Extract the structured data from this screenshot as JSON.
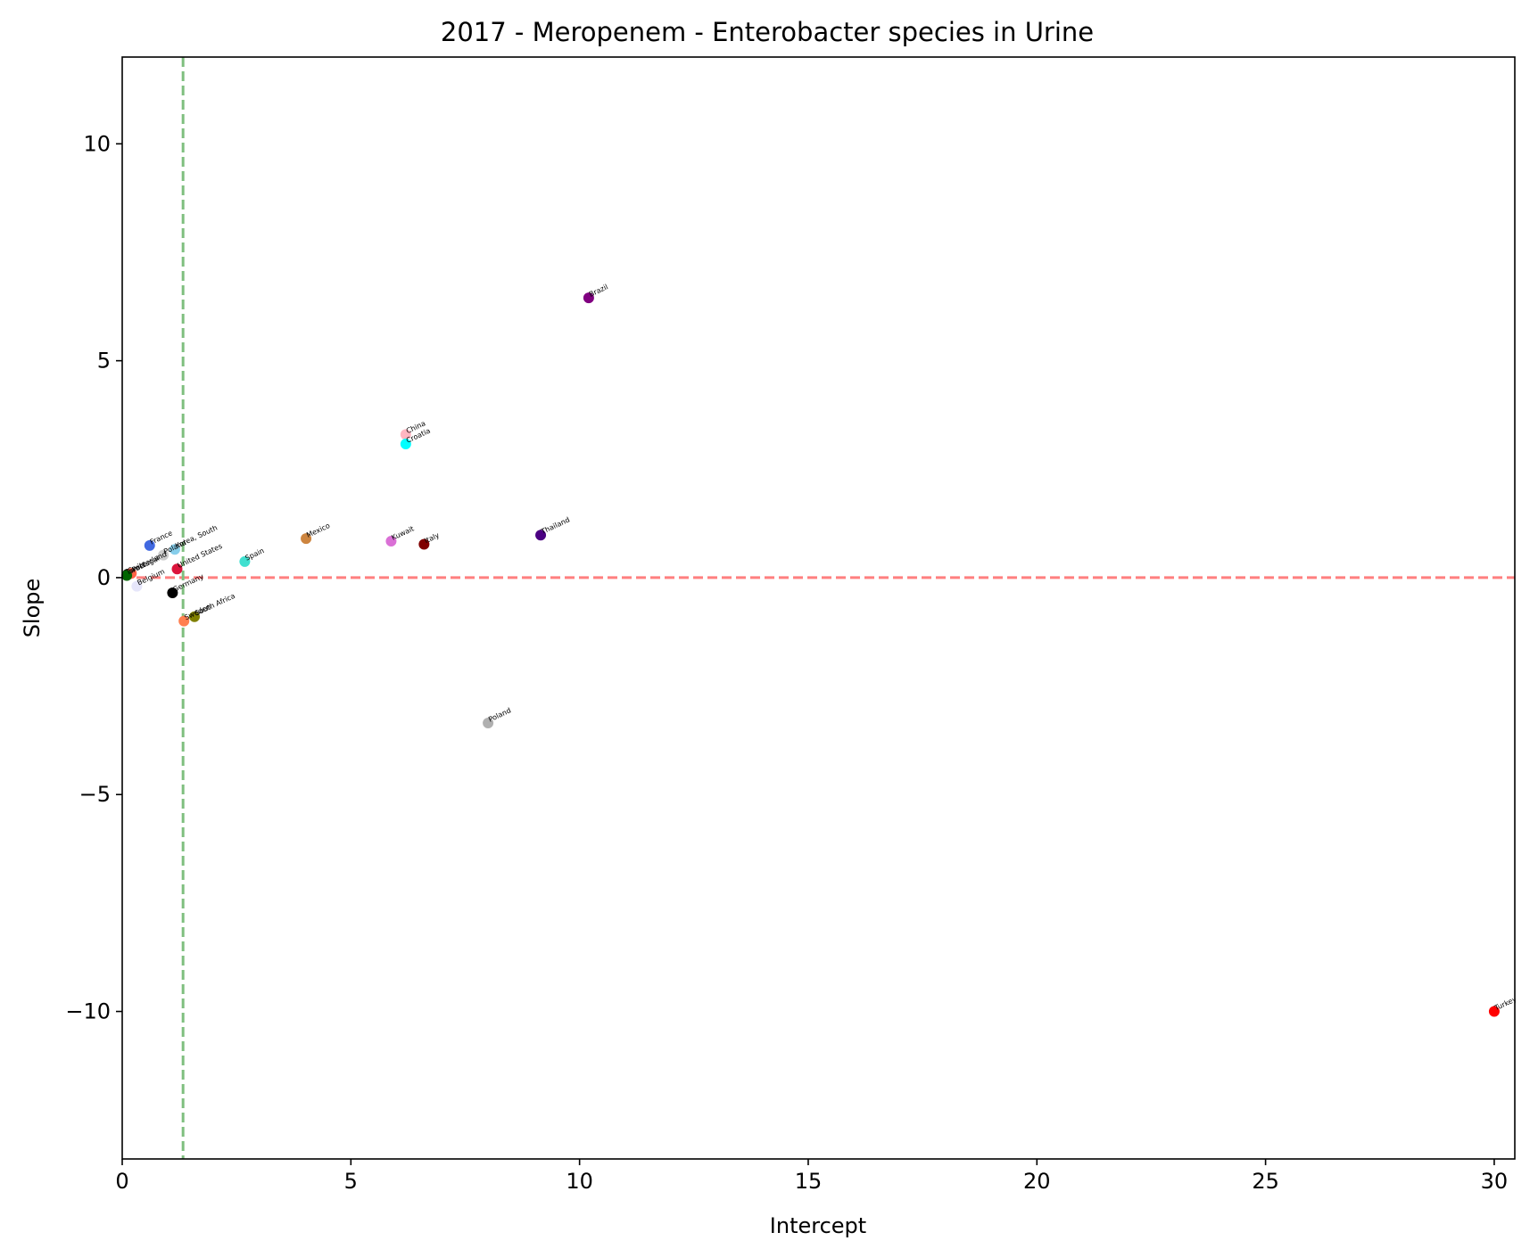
{
  "chart_data": {
    "type": "scatter",
    "title": "2017 - Meropenem - Enterobacter species in Urine",
    "xlabel": "Intercept",
    "ylabel": "Slope",
    "xlim": [
      0,
      30.45
    ],
    "ylim": [
      -13.4,
      12.0
    ],
    "xticks": [
      0,
      5,
      10,
      15,
      20,
      25,
      30
    ],
    "yticks": [
      -10,
      -5,
      0,
      5,
      10
    ],
    "xtick_labels": [
      "0",
      "5",
      "10",
      "15",
      "20",
      "25",
      "30"
    ],
    "ytick_labels": [
      "−10",
      "−5",
      "0",
      "5",
      "10"
    ],
    "grid": false,
    "reference_lines": [
      {
        "orientation": "horizontal",
        "value": 0,
        "color": "#ff7f7f",
        "style": "dashed"
      },
      {
        "orientation": "vertical",
        "value": 1.33,
        "color": "#7fbf7f",
        "style": "dashed"
      }
    ],
    "points": [
      {
        "label": "Brazil",
        "x": 10.2,
        "y": 6.45,
        "color": "#800080"
      },
      {
        "label": "China",
        "x": 6.2,
        "y": 3.3,
        "color": "#ffb6c1"
      },
      {
        "label": "Croatia",
        "x": 6.2,
        "y": 3.08,
        "color": "#00ffff"
      },
      {
        "label": "Thailand",
        "x": 9.15,
        "y": 0.98,
        "color": "#4b0082"
      },
      {
        "label": "Mexico",
        "x": 4.02,
        "y": 0.9,
        "color": "#cd853f"
      },
      {
        "label": "Kuwait",
        "x": 5.88,
        "y": 0.84,
        "color": "#da70d6"
      },
      {
        "label": "Italy",
        "x": 6.6,
        "y": 0.77,
        "color": "#800000"
      },
      {
        "label": "France",
        "x": 0.6,
        "y": 0.74,
        "color": "#4169e1"
      },
      {
        "label": "Korea, South",
        "x": 1.15,
        "y": 0.65,
        "color": "#87ceeb"
      },
      {
        "label": "Poland",
        "x": 0.9,
        "y": 0.52,
        "color": "#cccccc"
      },
      {
        "label": "United States",
        "x": 1.2,
        "y": 0.2,
        "color": "#dc143c"
      },
      {
        "label": "Spain",
        "x": 2.68,
        "y": 0.37,
        "color": "#40e0d0"
      },
      {
        "label": "Switzerland",
        "x": 0.12,
        "y": 0.08,
        "color": "#000000"
      },
      {
        "label": "Portugal",
        "x": 0.2,
        "y": 0.1,
        "color": "#ff6347"
      },
      {
        "label": "Israel",
        "x": 0.1,
        "y": 0.05,
        "color": "#006400"
      },
      {
        "label": "Belgium",
        "x": 0.32,
        "y": -0.2,
        "color": "#e6e6fa"
      },
      {
        "label": "Germany",
        "x": 1.1,
        "y": -0.35,
        "color": "#000000"
      },
      {
        "label": "South Africa",
        "x": 1.58,
        "y": -0.9,
        "color": "#808000"
      },
      {
        "label": "Sweden",
        "x": 1.35,
        "y": -1.0,
        "color": "#ff7f50"
      },
      {
        "label": "Poland",
        "x": 8.0,
        "y": -3.35,
        "color": "#b0b0b0"
      },
      {
        "label": "Turkey",
        "x": 30.0,
        "y": -10.0,
        "color": "#ff0000"
      }
    ]
  }
}
